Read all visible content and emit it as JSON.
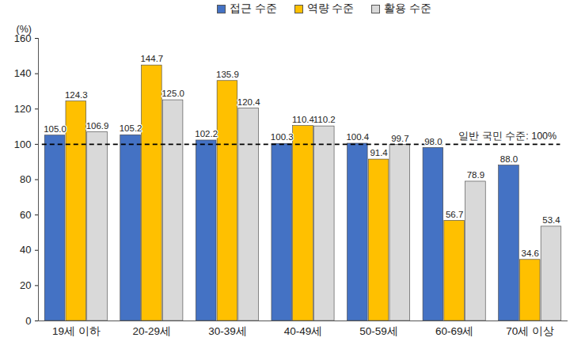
{
  "chart_data": {
    "type": "bar",
    "categories": [
      "19세 이하",
      "20-29세",
      "30-39세",
      "40-49세",
      "50-59세",
      "60-69세",
      "70세 이상"
    ],
    "series": [
      {
        "name": "접근 수준",
        "color": "#4472c4",
        "values": [
          105.0,
          105.2,
          102.2,
          100.3,
          100.4,
          98.0,
          88.0
        ],
        "value_labels": [
          "105.0",
          "105.2",
          "102.2",
          "100.3",
          "100.4",
          "98.0",
          "88.0"
        ]
      },
      {
        "name": "역량 수준",
        "color": "#ffc000",
        "values": [
          124.3,
          144.7,
          135.9,
          110.4,
          91.4,
          56.7,
          34.6
        ],
        "value_labels": [
          "124.3",
          "144.7",
          "135.9",
          "110.4",
          "91.4",
          "56.7",
          "34.6"
        ]
      },
      {
        "name": "활용 수준",
        "color": "#d9d9d9",
        "values": [
          106.9,
          125.0,
          120.4,
          110.2,
          99.7,
          78.9,
          53.4
        ],
        "value_labels": [
          "106.9",
          "125.0",
          "120.4",
          "110.2",
          "99.7",
          "78.9",
          "53.4"
        ]
      }
    ],
    "y_label": "(%)",
    "ylim": [
      0,
      160
    ],
    "yticks": [
      0,
      20,
      40,
      60,
      80,
      100,
      120,
      140,
      160
    ],
    "grid": false,
    "legend": "top",
    "data_labels": true,
    "annotations": [
      {
        "text": "일반 국민 수준: 100%",
        "y": 100,
        "line_style": "dashed"
      }
    ]
  }
}
